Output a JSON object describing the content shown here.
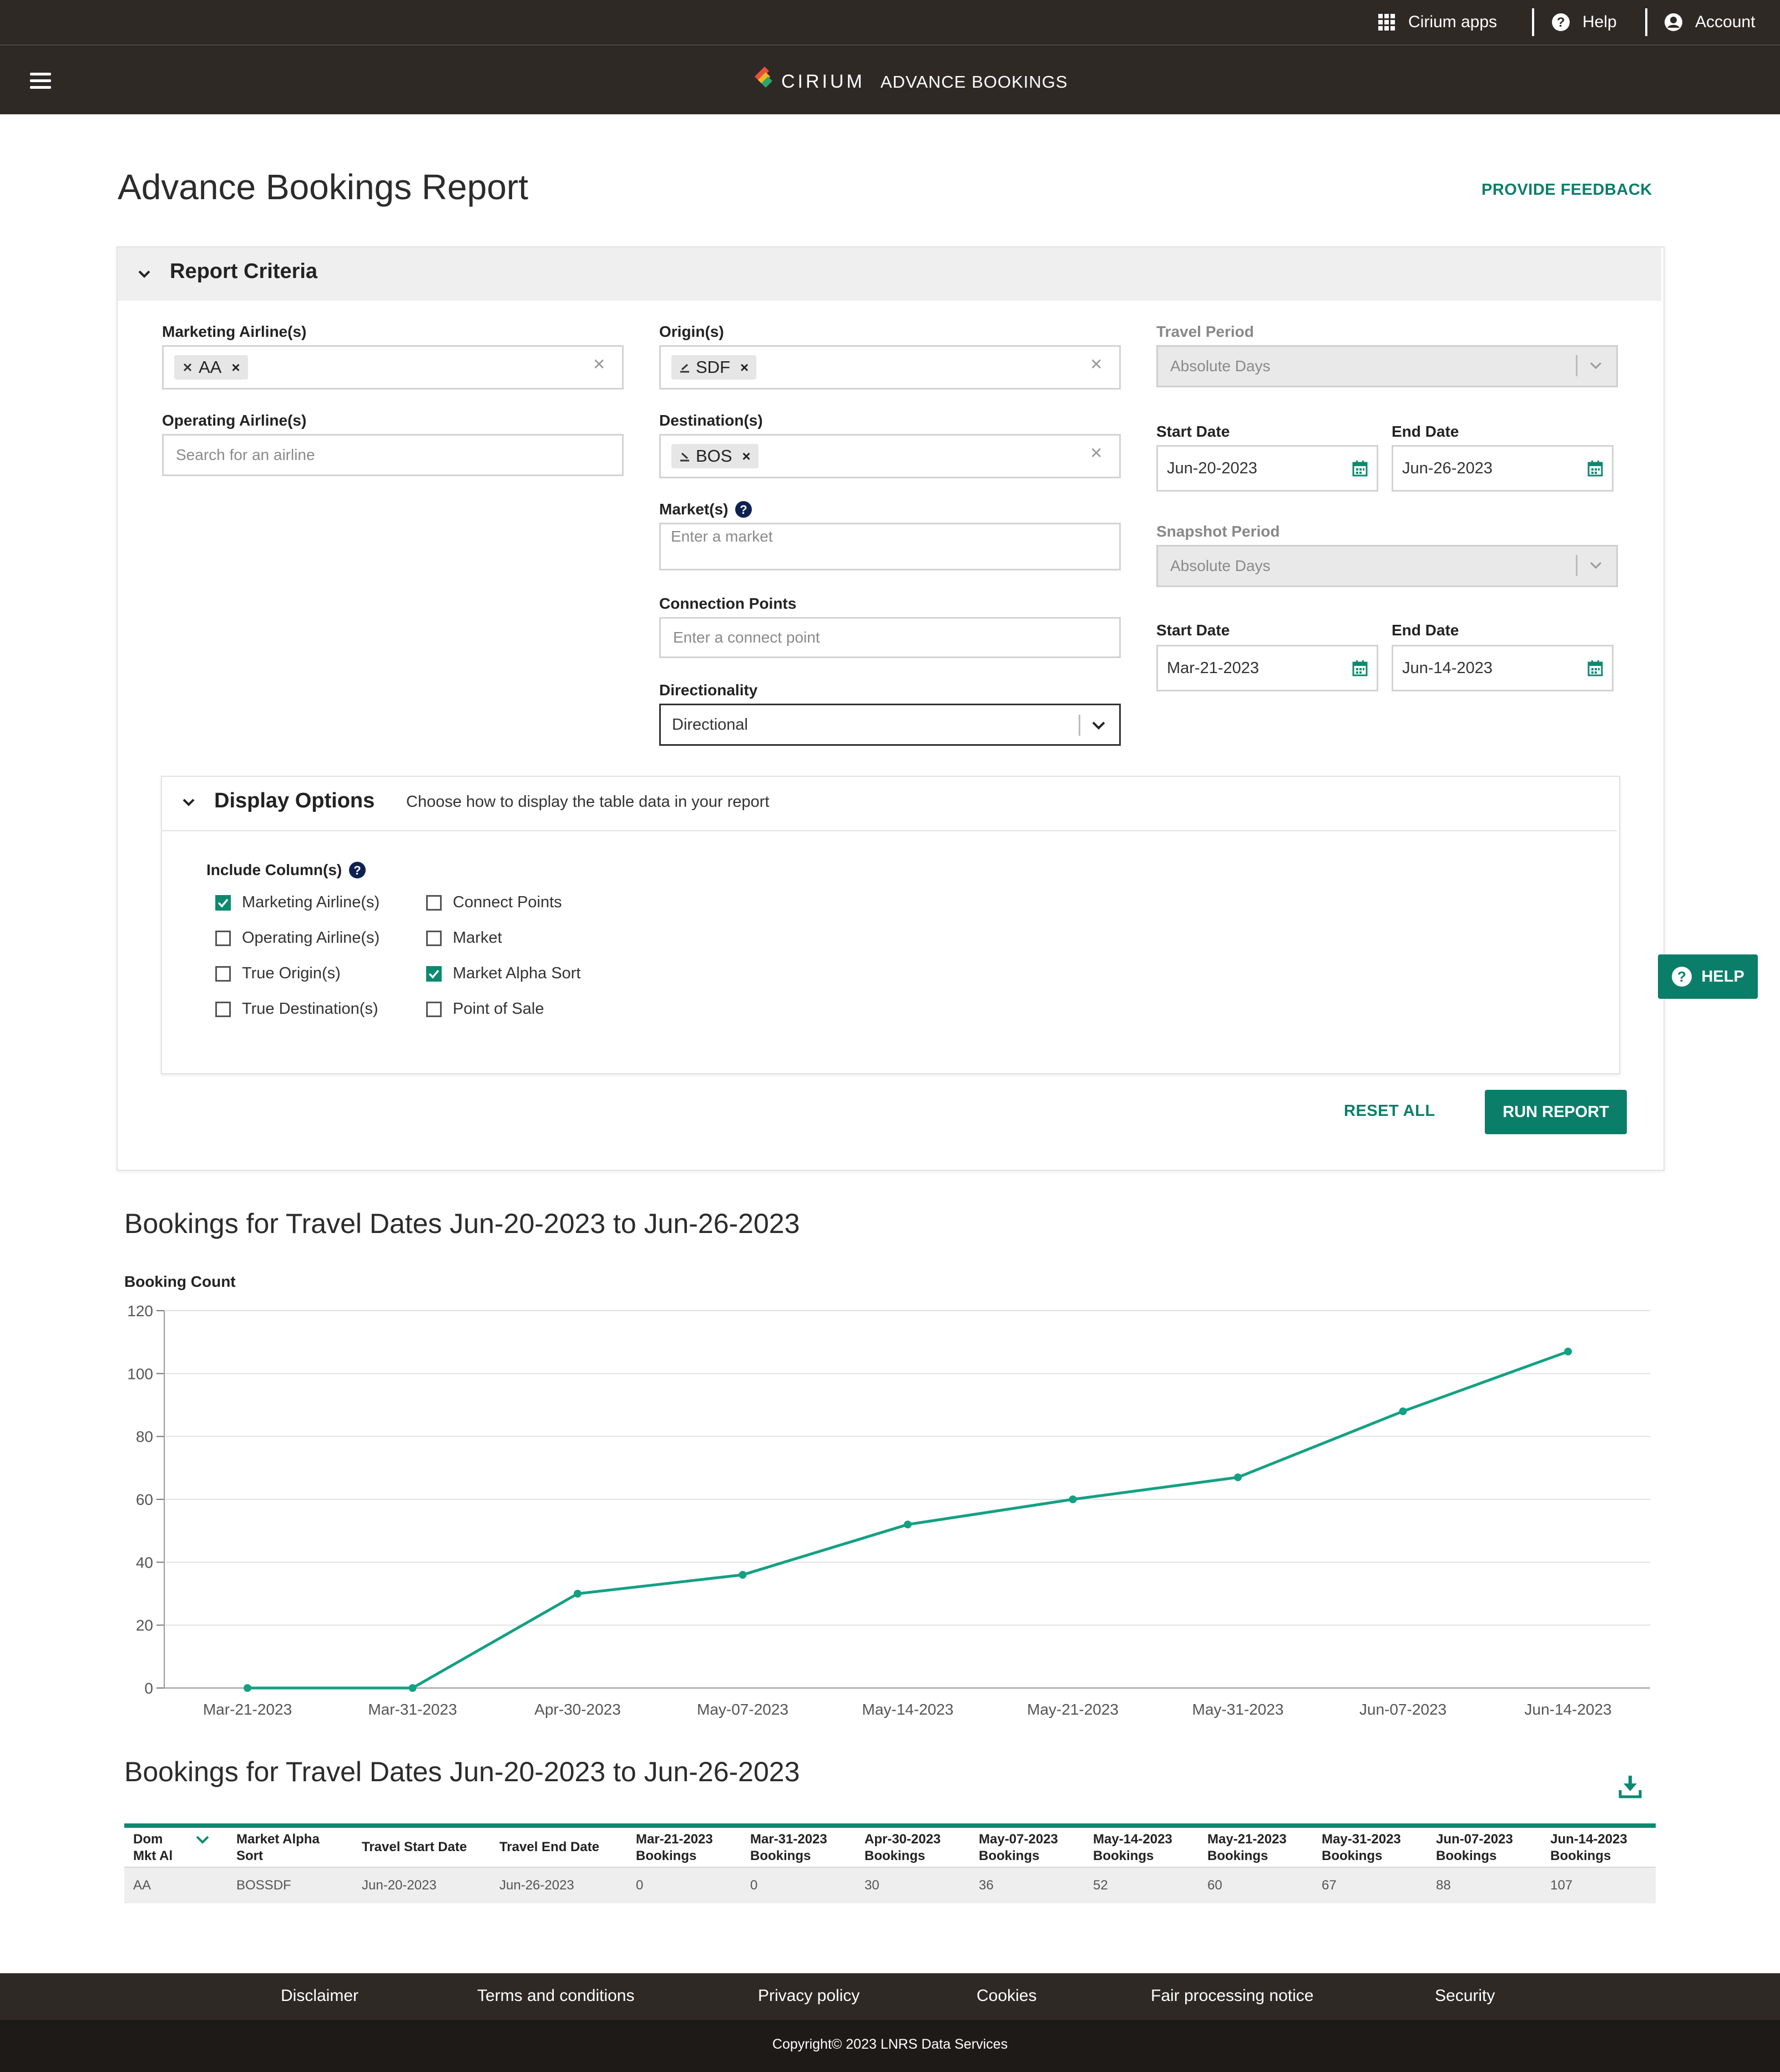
{
  "topbar": {
    "apps_label": "Cirium apps",
    "help_label": "Help",
    "account_label": "Account"
  },
  "navbar": {
    "brand_name": "CIRIUM",
    "product_name": "ADVANCE BOOKINGS"
  },
  "page": {
    "title": "Advance Bookings Report",
    "feedback_label": "PROVIDE FEEDBACK"
  },
  "criteria": {
    "section_title": "Report Criteria",
    "marketing_airlines": {
      "label": "Marketing Airline(s)",
      "chips": [
        "AA"
      ]
    },
    "operating_airlines": {
      "label": "Operating Airline(s)",
      "placeholder": "Search for an airline"
    },
    "origins": {
      "label": "Origin(s)",
      "chips": [
        "SDF"
      ]
    },
    "destinations": {
      "label": "Destination(s)",
      "chips": [
        "BOS"
      ]
    },
    "markets": {
      "label": "Market(s)",
      "placeholder": "Enter a market"
    },
    "connection_points": {
      "label": "Connection Points",
      "placeholder": "Enter a connect point"
    },
    "directionality": {
      "label": "Directionality",
      "value": "Directional"
    },
    "travel_period": {
      "label": "Travel Period",
      "value": "Absolute Days",
      "start_label": "Start Date",
      "start": "Jun-20-2023",
      "end_label": "End Date",
      "end": "Jun-26-2023"
    },
    "snapshot_period": {
      "label": "Snapshot Period",
      "value": "Absolute Days",
      "start_label": "Start Date",
      "start": "Mar-21-2023",
      "end_label": "End Date",
      "end": "Jun-14-2023"
    }
  },
  "display_options": {
    "title": "Display Options",
    "subtitle": "Choose how to display the table data in your report",
    "include_label": "Include Column(s)",
    "columns": [
      {
        "label": "Marketing Airline(s)",
        "checked": true
      },
      {
        "label": "Operating Airline(s)",
        "checked": false
      },
      {
        "label": "True Origin(s)",
        "checked": false
      },
      {
        "label": "True Destination(s)",
        "checked": false
      },
      {
        "label": "Connect Points",
        "checked": false
      },
      {
        "label": "Market",
        "checked": false
      },
      {
        "label": "Market Alpha Sort",
        "checked": true
      },
      {
        "label": "Point of Sale",
        "checked": false
      }
    ]
  },
  "actions": {
    "reset_label": "RESET ALL",
    "run_label": "RUN REPORT",
    "help_label": "HELP"
  },
  "chart_section": {
    "title": "Bookings for Travel Dates Jun-20-2023 to Jun-26-2023",
    "ylabel": "Booking Count"
  },
  "chart_data": {
    "type": "line",
    "title": "Bookings for Travel Dates Jun-20-2023 to Jun-26-2023",
    "ylabel": "Booking Count",
    "xlabel": "",
    "categories": [
      "Mar-21-2023",
      "Mar-31-2023",
      "Apr-30-2023",
      "May-07-2023",
      "May-14-2023",
      "May-21-2023",
      "May-31-2023",
      "Jun-07-2023",
      "Jun-14-2023"
    ],
    "values": [
      0,
      0,
      30,
      36,
      52,
      60,
      67,
      88,
      107
    ],
    "ylim": [
      0,
      120
    ],
    "yticks": [
      0,
      20,
      40,
      60,
      80,
      100,
      120
    ],
    "grid": true,
    "color": "#13a083"
  },
  "table_section": {
    "title": "Bookings for Travel Dates Jun-20-2023 to Jun-26-2023",
    "headers": [
      [
        "Dom",
        "Mkt Al"
      ],
      [
        "Market Alpha",
        "Sort"
      ],
      [
        "Travel Start Date"
      ],
      [
        "Travel End Date"
      ],
      [
        "Mar-21-2023",
        "Bookings"
      ],
      [
        "Mar-31-2023",
        "Bookings"
      ],
      [
        "Apr-30-2023",
        "Bookings"
      ],
      [
        "May-07-2023",
        "Bookings"
      ],
      [
        "May-14-2023",
        "Bookings"
      ],
      [
        "May-21-2023",
        "Bookings"
      ],
      [
        "May-31-2023",
        "Bookings"
      ],
      [
        "Jun-07-2023",
        "Bookings"
      ],
      [
        "Jun-14-2023",
        "Bookings"
      ]
    ],
    "rows": [
      [
        "AA",
        "BOSSDF",
        "Jun-20-2023",
        "Jun-26-2023",
        "0",
        "0",
        "30",
        "36",
        "52",
        "60",
        "67",
        "88",
        "107"
      ]
    ]
  },
  "footer": {
    "links": [
      "Disclaimer",
      "Terms and conditions",
      "Privacy policy",
      "Cookies",
      "Fair processing notice",
      "Security"
    ],
    "copyright": "Copyright© 2023 LNRS Data Services"
  },
  "colors": {
    "header_bg": "#2f2926",
    "accent": "#0b7e6a",
    "line": "#13a083"
  }
}
